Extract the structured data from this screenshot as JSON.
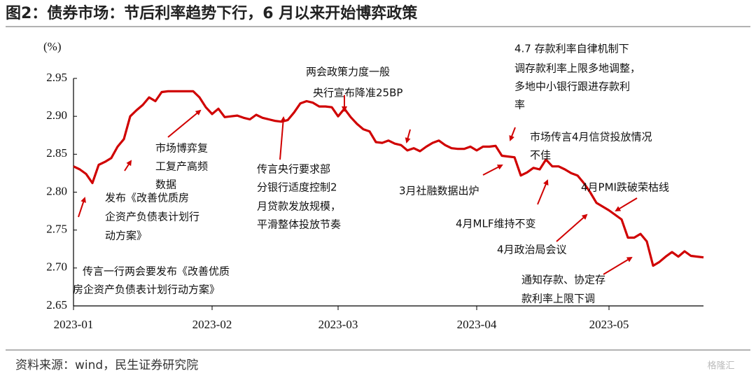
{
  "chart_data": {
    "type": "line",
    "title": "图2：债券市场：节后利率趋势下行，6 月以来开始博弈政策",
    "y_unit": "(%)",
    "source": "资料来源：wind，民生证券研究院",
    "watermark": "格隆汇",
    "color": "#d00000",
    "ylim": [
      2.65,
      2.95
    ],
    "yticks": [
      2.65,
      {
        "value": 2.7,
        "label": "2.70"
      },
      2.75,
      {
        "value": 2.8,
        "label": "2.80"
      },
      2.85,
      {
        "value": 2.9,
        "label": "2.90"
      },
      2.95
    ],
    "categories": [
      "2023-01",
      null,
      null,
      null,
      null,
      null,
      null,
      null,
      null,
      null,
      null,
      null,
      null,
      null,
      null,
      null,
      null,
      null,
      null,
      null,
      null,
      null,
      "2023-02",
      null,
      null,
      null,
      null,
      null,
      null,
      null,
      null,
      null,
      null,
      null,
      null,
      null,
      null,
      null,
      null,
      null,
      null,
      null,
      "2023-03",
      null,
      null,
      null,
      null,
      null,
      null,
      null,
      null,
      null,
      null,
      null,
      null,
      null,
      null,
      null,
      null,
      null,
      null,
      null,
      null,
      null,
      "2023-04",
      null,
      null,
      null,
      null,
      null,
      null,
      null,
      null,
      null,
      null,
      null,
      null,
      null,
      null,
      null,
      null,
      null,
      null,
      null,
      null,
      "2023-05",
      null,
      null,
      null,
      null,
      null,
      null,
      null,
      null,
      null,
      null,
      null,
      null,
      null,
      null,
      null
    ],
    "values": [
      2.834,
      2.83,
      2.824,
      2.812,
      2.836,
      2.84,
      2.845,
      2.86,
      2.87,
      2.9,
      2.908,
      2.915,
      2.925,
      2.92,
      2.932,
      2.933,
      2.933,
      2.933,
      2.933,
      2.933,
      2.925,
      2.912,
      2.903,
      2.91,
      2.899,
      2.9,
      2.901,
      2.898,
      2.896,
      2.902,
      2.898,
      2.896,
      2.894,
      2.893,
      2.895,
      2.905,
      2.917,
      2.92,
      2.918,
      2.913,
      2.913,
      2.912,
      2.9,
      2.91,
      2.899,
      2.89,
      2.883,
      2.88,
      2.866,
      2.865,
      2.868,
      2.864,
      2.862,
      2.855,
      2.858,
      2.854,
      2.86,
      2.865,
      2.868,
      2.862,
      2.858,
      2.857,
      2.857,
      2.86,
      2.855,
      2.86,
      2.86,
      2.861,
      2.848,
      2.847,
      2.846,
      2.822,
      2.826,
      2.832,
      2.83,
      2.843,
      2.834,
      2.834,
      2.83,
      2.825,
      2.822,
      2.812,
      2.8,
      2.786,
      2.781,
      2.776,
      2.77,
      2.764,
      2.74,
      2.74,
      2.745,
      2.735,
      2.703,
      2.708,
      2.715,
      2.721,
      2.715,
      2.722,
      2.716,
      2.715,
      2.714
    ],
    "annotations": [
      {
        "lines": [
          "两会政策力度一般",
          "央行宣布降准25BP"
        ]
      },
      {
        "lines": [
          "4.7 存款利率自律机制下",
          "调存款利率上限多地调整，",
          "多地中小银行跟进存款利",
          "率"
        ]
      },
      {
        "lines": [
          "市场传言4月信贷投放情况",
          "不佳"
        ]
      },
      {
        "lines": [
          "市场博弈复",
          "工复产高频",
          "数据"
        ]
      },
      {
        "lines": [
          "传言央行要求部",
          "分银行适度控制2",
          "月贷款发放规模，",
          "平滑整体投放节奏"
        ]
      },
      {
        "lines": [
          "发布《改善优质房",
          "企资产负债表计划行",
          "动方案》"
        ]
      },
      {
        "lines": [
          "传言一行两会要发布《改善优质",
          "房企资产负债表计划行动方案》"
        ]
      },
      {
        "lines": [
          "3月社融数据出炉"
        ]
      },
      {
        "lines": [
          "4月PMI跌破荣枯线"
        ]
      },
      {
        "lines": [
          "4月MLF维持不变"
        ]
      },
      {
        "lines": [
          "4月政治局会议"
        ]
      },
      {
        "lines": [
          "通知存款、协定存",
          "款利率上限下调"
        ]
      }
    ]
  }
}
